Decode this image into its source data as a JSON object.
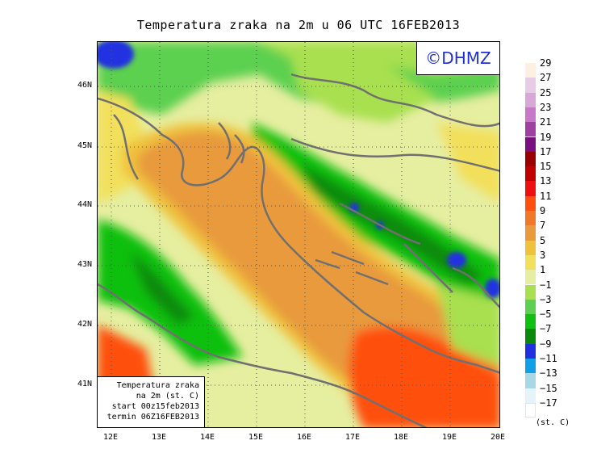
{
  "title": "Temperatura zraka na 2m u 06 UTC 16FEB2013",
  "logo": "©DHMZ",
  "info_box": {
    "line1": "Temperatura zraka",
    "line2": "na 2m (st. C)",
    "line3": "start 00z15feb2013",
    "line4": "termin 06Z16FEB2013"
  },
  "axes": {
    "lat_labels": [
      "46N",
      "45N",
      "44N",
      "43N",
      "42N",
      "41N"
    ],
    "lon_labels": [
      "12E",
      "13E",
      "14E",
      "15E",
      "16E",
      "17E",
      "18E",
      "19E",
      "20E"
    ]
  },
  "legend": {
    "unit": "(st. C)",
    "ticks": [
      "29",
      "27",
      "25",
      "23",
      "21",
      "19",
      "17",
      "15",
      "13",
      "11",
      "9",
      "7",
      "5",
      "3",
      "1",
      "−1",
      "−3",
      "−5",
      "−7",
      "−9",
      "−11",
      "−13",
      "−15",
      "−17"
    ],
    "colors": [
      "#fdf0e0",
      "#e6cce6",
      "#d8a8d8",
      "#c878c8",
      "#a040a0",
      "#7a1080",
      "#9a0000",
      "#c00000",
      "#ee1010",
      "#ff5010",
      "#f07828",
      "#e89a3c",
      "#f0c23c",
      "#f2e05c",
      "#e6eea0",
      "#a8e050",
      "#5cd050",
      "#10c010",
      "#0a8a0a",
      "#2030e0",
      "#10a0e8",
      "#a8d8e8",
      "#e4f4f8",
      "#ffffff"
    ]
  }
}
